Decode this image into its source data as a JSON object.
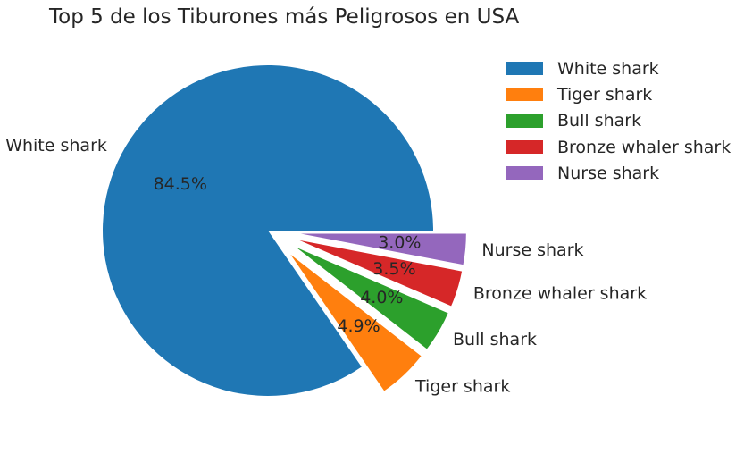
{
  "chart_data": {
    "type": "pie",
    "title": "Top 5 de los Tiburones más Peligrosos en USA",
    "categories": [
      "White shark",
      "Tiger shark",
      "Bull shark",
      "Bronze whaler shark",
      "Nurse shark"
    ],
    "values": [
      84.5,
      4.9,
      4.0,
      3.5,
      3.0
    ],
    "value_labels": [
      "84.5%",
      "4.9%",
      "4.0%",
      "3.5%",
      "3.0%"
    ],
    "colors": [
      "#1f77b4",
      "#ff7f0e",
      "#2ca02c",
      "#d62728",
      "#9467bd"
    ],
    "exploded": [
      false,
      true,
      true,
      true,
      true
    ],
    "start_angle": 0,
    "direction": "counterclockwise",
    "legend": {
      "placement": "top-right"
    }
  }
}
